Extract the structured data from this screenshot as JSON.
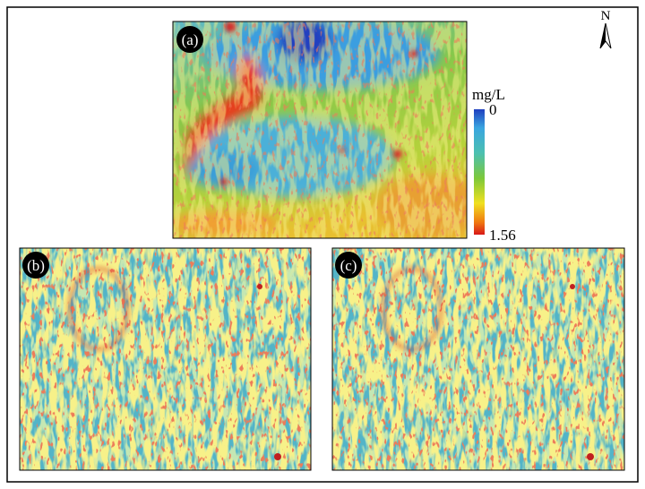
{
  "panels": [
    {
      "label": "(a)"
    },
    {
      "label": "(b)"
    },
    {
      "label": "(c)"
    }
  ],
  "colorbar": {
    "unit": "mg/L",
    "ticks": [
      0,
      1.56
    ]
  },
  "north": "N"
}
